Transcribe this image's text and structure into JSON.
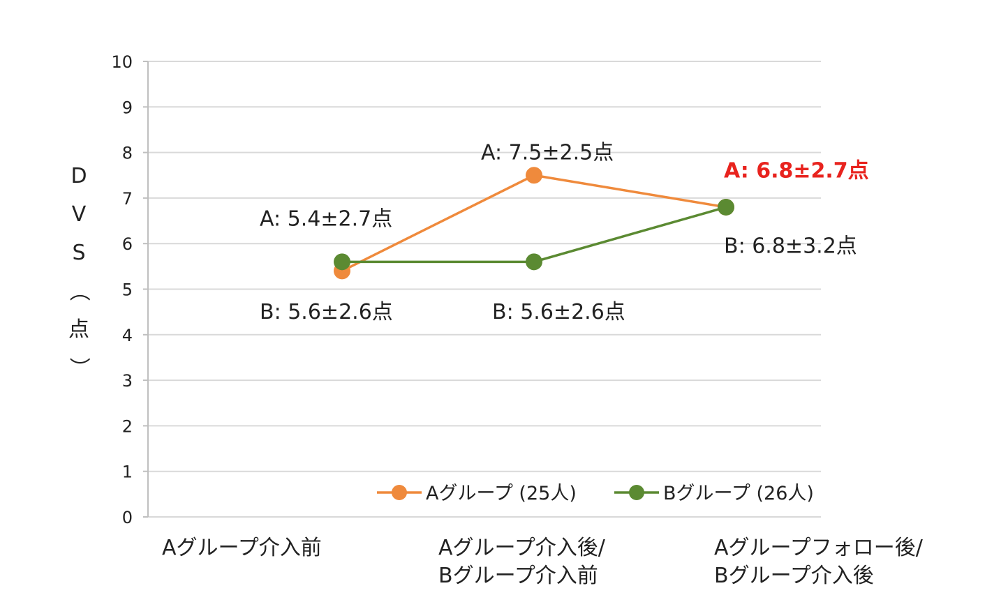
{
  "chart_data": {
    "type": "line",
    "categories": [
      "Aグループ介入前",
      "Aグループ介入後/\nBグループ介入前",
      "Aグループフォロー後/\nBグループ介入後"
    ],
    "ylabel": "DVS（点）",
    "ylim": [
      0,
      10
    ],
    "yticks": [
      "0",
      "1",
      "2",
      "3",
      "4",
      "5",
      "6",
      "7",
      "8",
      "9",
      "10"
    ],
    "grid": true,
    "legend_position": "bottom-right",
    "series": [
      {
        "name": "Aグループ (25人)",
        "color": "#ef8a3c",
        "values": [
          5.4,
          7.5,
          6.8
        ]
      },
      {
        "name": "Bグループ (26人)",
        "color": "#5b8a32",
        "values": [
          5.6,
          5.6,
          6.8
        ]
      }
    ],
    "annotations": [
      {
        "text": "A: 5.4±2.7点",
        "category": 0,
        "y": 6.55,
        "highlight": false
      },
      {
        "text": "B: 5.6±2.6点",
        "category": 0,
        "y": 4.5,
        "highlight": false
      },
      {
        "text": "A: 7.5±2.5点",
        "category": 1,
        "y": 8.0,
        "highlight": false
      },
      {
        "text": "B: 5.6±2.6点",
        "category": 1,
        "y": 4.5,
        "highlight": false
      },
      {
        "text": "A: 6.8±2.7点",
        "category": 2,
        "y": 7.6,
        "highlight": true,
        "color": "#e8231e"
      },
      {
        "text": "B: 6.8±3.2点",
        "category": 2,
        "y": 5.95,
        "highlight": false
      }
    ]
  }
}
